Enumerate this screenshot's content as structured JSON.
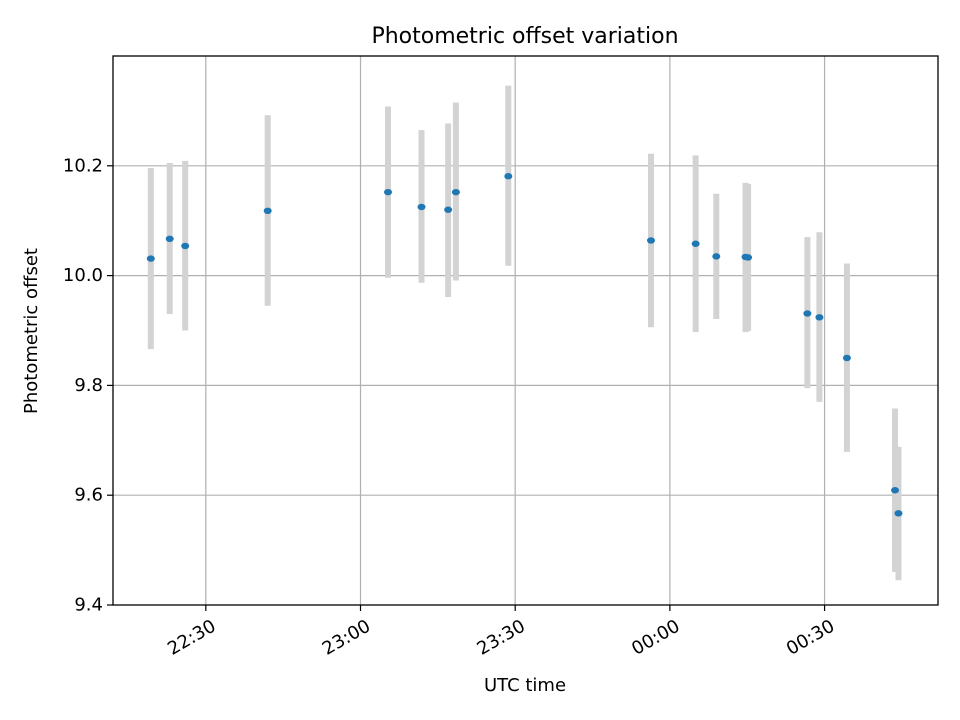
{
  "chart_data": {
    "type": "scatter",
    "title": "Photometric offset variation",
    "xlabel": "UTC time",
    "ylabel": "Photometric offset",
    "x_unit": "hh:mm",
    "xlim": [
      "22:12",
      "00:52"
    ],
    "ylim": [
      9.4,
      10.4
    ],
    "xticks": [
      "22:30",
      "23:00",
      "23:30",
      "00:00",
      "00:30"
    ],
    "yticks": [
      9.4,
      9.6,
      9.8,
      10.0,
      10.2
    ],
    "grid": true,
    "errorbar_color": "#d3d3d3",
    "marker_color": "#1f77b4",
    "series": [
      {
        "points": [
          {
            "x": "22:19:20",
            "y": 10.031,
            "ylow": 9.866,
            "yhigh": 10.196
          },
          {
            "x": "22:23:00",
            "y": 10.067,
            "ylow": 9.93,
            "yhigh": 10.205
          },
          {
            "x": "22:26:00",
            "y": 10.054,
            "ylow": 9.9,
            "yhigh": 10.209
          },
          {
            "x": "22:42:00",
            "y": 10.118,
            "ylow": 9.945,
            "yhigh": 10.292
          },
          {
            "x": "23:05:20",
            "y": 10.152,
            "ylow": 9.996,
            "yhigh": 10.308
          },
          {
            "x": "23:11:50",
            "y": 10.125,
            "ylow": 9.987,
            "yhigh": 10.265
          },
          {
            "x": "23:17:00",
            "y": 10.12,
            "ylow": 9.961,
            "yhigh": 10.277
          },
          {
            "x": "23:18:30",
            "y": 10.152,
            "ylow": 9.991,
            "yhigh": 10.315
          },
          {
            "x": "23:28:40",
            "y": 10.181,
            "ylow": 10.018,
            "yhigh": 10.346
          },
          {
            "x": "23:56:20",
            "y": 10.064,
            "ylow": 9.906,
            "yhigh": 10.222
          },
          {
            "x": "00:05:00",
            "y": 10.058,
            "ylow": 9.897,
            "yhigh": 10.219
          },
          {
            "x": "00:09:00",
            "y": 10.035,
            "ylow": 9.921,
            "yhigh": 10.149
          },
          {
            "x": "00:14:40",
            "y": 10.034,
            "ylow": 9.897,
            "yhigh": 10.169
          },
          {
            "x": "00:15:10",
            "y": 10.033,
            "ylow": 9.899,
            "yhigh": 10.167
          },
          {
            "x": "00:26:40",
            "y": 9.931,
            "ylow": 9.795,
            "yhigh": 10.07
          },
          {
            "x": "00:29:00",
            "y": 9.924,
            "ylow": 9.77,
            "yhigh": 10.079
          },
          {
            "x": "00:34:20",
            "y": 9.85,
            "ylow": 9.679,
            "yhigh": 10.022
          },
          {
            "x": "00:43:40",
            "y": 9.609,
            "ylow": 9.46,
            "yhigh": 9.758
          },
          {
            "x": "00:44:20",
            "y": 9.567,
            "ylow": 9.445,
            "yhigh": 9.688
          }
        ]
      }
    ]
  }
}
